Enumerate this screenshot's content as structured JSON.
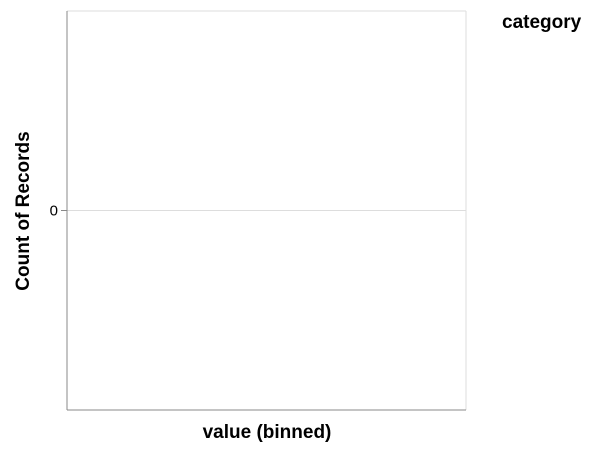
{
  "chart_data": {
    "type": "bar",
    "title": "",
    "xlabel": "value (binned)",
    "ylabel": "Count of Records",
    "legend_title": "category",
    "legend_position": "top-right",
    "grid": true,
    "y_ticks": [
      0
    ],
    "y_tick_labels": [
      "0"
    ],
    "ylim": [
      -1,
      1
    ],
    "series": []
  },
  "colors": {
    "axis": "#888888",
    "grid": "#dddddd",
    "frame": "#dddddd",
    "text": "#000000"
  }
}
